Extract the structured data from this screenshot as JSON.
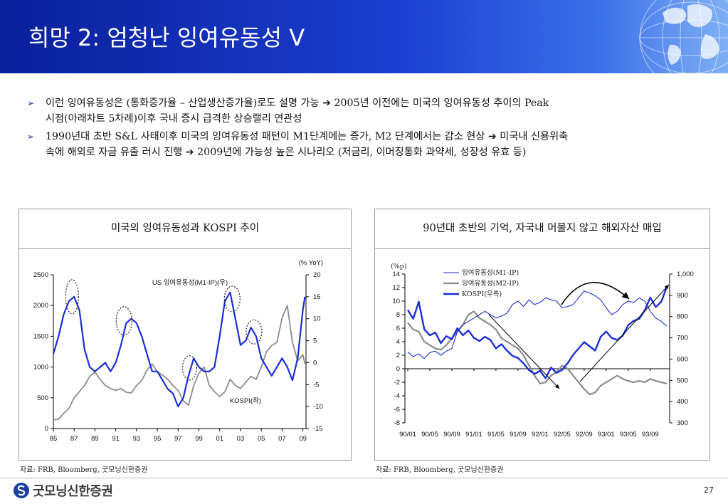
{
  "header": {
    "title": "희망 2: 엄청난 잉여유동성 V"
  },
  "bullets": [
    {
      "line1": "이런 잉여유동성은 (통화증가율 – 산업생산증가율)로도 설명 가능 ➔ 2005년 이전에는 미국의 잉여유동성 추이의 Peak",
      "line2": "시점(아래차트 5차례)이후 국내 증시 급격한 상승랠리 연관성"
    },
    {
      "line1": "1990년대 초반 S&L 사태이후 미국의 잉여유동성 패턴이 M1단계에는 증가, M2 단계에서는 감소 현상 ➔ 미국내 신용위축",
      "line2": "속에 해외로 자금 유출 러시 진행 ➔ 2009년에 가능성 높은 시나리오 (저금리, 이머징통화 과약세, 성장성 유효 등)"
    }
  ],
  "panels": {
    "left": {
      "title": "미국의 잉여유동성과 KOSPI 추이",
      "source": "자료: FRB, Bloomberg, 굿모닝신한증권"
    },
    "right": {
      "title": "90년대 초반의 기억, 자국내 머물지 않고 해외자산 매입",
      "source": "자료: FRB, Bloomberg, 굿모닝신한증권"
    }
  },
  "footer": {
    "logo": "굿모닝신한증권",
    "page": "27"
  },
  "colors": {
    "blue_series": "#1a2fd6",
    "gray_series": "#8c8c8c",
    "header_start": "#0a1f9a",
    "header_end": "#7fb0f5"
  },
  "chart_data": [
    {
      "type": "line",
      "title": "미국의 잉여유동성과 KOSPI 추이",
      "x_ticks": [
        "85",
        "87",
        "89",
        "91",
        "93",
        "95",
        "97",
        "99",
        "01",
        "03",
        "05",
        "07",
        "09"
      ],
      "y_left_ticks": [
        "0",
        "500",
        "1000",
        "1500",
        "2000",
        "2500"
      ],
      "y_right_ticks": [
        "-15",
        "-10",
        "-5",
        "0",
        "5",
        "10",
        "15",
        "20"
      ],
      "ylim_left": [
        0,
        2500
      ],
      "ylim_right": [
        -15,
        20
      ],
      "right_unit": "(% YoY)",
      "annotations": {
        "blue": "US 잉여유동성(M1-IP)(우)",
        "gray": "KOSPI(좌)"
      },
      "series": [
        {
          "name": "US 잉여유동성(M1-IP)(우)",
          "axis": "right",
          "x": [
            85,
            85.5,
            86,
            86.5,
            87,
            87.5,
            88,
            88.5,
            89,
            89.5,
            90,
            90.5,
            91,
            91.5,
            92,
            92.5,
            93,
            93.5,
            94,
            94.5,
            95,
            95.5,
            96,
            96.5,
            97,
            97.5,
            98,
            98.5,
            99,
            99.5,
            100,
            100.5,
            101,
            101.5,
            102,
            102.5,
            103,
            103.5,
            104,
            104.5,
            105,
            105.5,
            106,
            106.5,
            107,
            107.5,
            108,
            108.5,
            109,
            109.2
          ],
          "y": [
            2,
            6,
            11,
            14,
            15,
            12,
            3,
            -1,
            -2,
            -1,
            0,
            -2,
            0,
            4,
            9,
            10,
            9,
            6,
            2,
            -2,
            -2,
            -4,
            -6,
            -7,
            -10,
            -8,
            -3,
            1,
            -1,
            -2,
            -2,
            -1,
            6,
            14,
            16,
            10,
            4,
            5,
            8,
            6,
            1,
            -1,
            -3,
            -1,
            1,
            -1,
            -4,
            1,
            12,
            15
          ]
        },
        {
          "name": "KOSPI(좌)",
          "axis": "left",
          "x": [
            85,
            85.5,
            86,
            86.5,
            87,
            87.5,
            88,
            88.5,
            89,
            89.5,
            90,
            90.5,
            91,
            91.5,
            92,
            92.5,
            93,
            93.5,
            94,
            94.5,
            95,
            95.5,
            96,
            96.5,
            97,
            97.5,
            98,
            98.5,
            99,
            99.5,
            100,
            100.5,
            101,
            101.5,
            102,
            102.5,
            103,
            103.5,
            104,
            104.5,
            105,
            105.5,
            106,
            106.5,
            107,
            107.5,
            108,
            108.5,
            109,
            109.2
          ],
          "y": [
            140,
            150,
            250,
            330,
            500,
            600,
            700,
            850,
            920,
            800,
            700,
            650,
            620,
            650,
            590,
            580,
            700,
            780,
            950,
            1050,
            920,
            870,
            800,
            700,
            620,
            450,
            380,
            700,
            900,
            1000,
            700,
            600,
            520,
            600,
            800,
            700,
            650,
            750,
            850,
            800,
            1000,
            1250,
            1350,
            1400,
            1800,
            2000,
            1400,
            1100,
            1200,
            1050
          ]
        }
      ]
    },
    {
      "type": "line",
      "title": "90년대 초반의 기억, 자국내 머물지 않고 해외자산 매입",
      "x_ticks": [
        "90/01",
        "90/05",
        "90/09",
        "91/01",
        "91/05",
        "91/09",
        "92/01",
        "92/05",
        "92/09",
        "93/01",
        "93/05",
        "93/09"
      ],
      "y_left_ticks": [
        "-8",
        "-6",
        "-4",
        "-2",
        "0",
        "2",
        "4",
        "6",
        "8",
        "10",
        "12",
        "14"
      ],
      "y_right_ticks": [
        "300",
        "400",
        "500",
        "600",
        "700",
        "800",
        "900",
        "1,000"
      ],
      "ylim_left": [
        -8,
        14
      ],
      "ylim_right": [
        300,
        1000
      ],
      "left_unit": "(%p)",
      "series": [
        {
          "name": "잉여유동성(M1-IP)",
          "axis": "left",
          "x": [
            0,
            1,
            2,
            3,
            4,
            5,
            6,
            7,
            8,
            9,
            10,
            11,
            12,
            13,
            14,
            15,
            16,
            17,
            18,
            19,
            20,
            21,
            22,
            23,
            24,
            25,
            26,
            27,
            28,
            29,
            30,
            31,
            32,
            33,
            34,
            35,
            36,
            37,
            38,
            39,
            40,
            41,
            42,
            43,
            44,
            45,
            46,
            47
          ],
          "y": [
            2.5,
            1.8,
            2.2,
            1.5,
            2.4,
            2.6,
            2.0,
            2.6,
            3.0,
            5.5,
            6.5,
            7.0,
            7.5,
            8.0,
            8.5,
            8.0,
            7.5,
            7.8,
            8.2,
            9.5,
            10.0,
            9.2,
            10.2,
            9.5,
            9.8,
            10.5,
            10.2,
            10.0,
            9.0,
            9.2,
            9.5,
            10.5,
            11.5,
            11.2,
            10.8,
            10.2,
            9.0,
            8.0,
            8.5,
            9.5,
            10.0,
            9.8,
            10.5,
            10.0,
            8.5,
            7.5,
            7.0,
            6.3
          ]
        },
        {
          "name": "잉여유동성(M2-IP)",
          "axis": "left",
          "x": [
            0,
            1,
            2,
            3,
            4,
            5,
            6,
            7,
            8,
            9,
            10,
            11,
            12,
            13,
            14,
            15,
            16,
            17,
            18,
            19,
            20,
            21,
            22,
            23,
            24,
            25,
            26,
            27,
            28,
            29,
            30,
            31,
            32,
            33,
            34,
            35,
            36,
            37,
            38,
            39,
            40,
            41,
            42,
            43,
            44,
            45,
            46,
            47
          ],
          "y": [
            6.8,
            5.8,
            5.5,
            4.0,
            3.5,
            3.0,
            2.8,
            3.5,
            4.5,
            5.5,
            6.5,
            8.0,
            8.5,
            7.5,
            7.0,
            6.5,
            5.8,
            4.5,
            4.0,
            3.5,
            3.0,
            2.0,
            0.5,
            -1.0,
            -2.2,
            -2.0,
            -1.0,
            -0.5,
            0.5,
            0.0,
            -1.0,
            -2.0,
            -3.0,
            -3.8,
            -3.5,
            -2.5,
            -2.0,
            -1.5,
            -1.0,
            -1.5,
            -1.8,
            -2.0,
            -1.8,
            -2.0,
            -1.5,
            -1.8,
            -2.0,
            -2.2
          ]
        },
        {
          "name": "KOSPI(우측)",
          "axis": "right",
          "x": [
            0,
            1,
            2,
            3,
            4,
            5,
            6,
            7,
            8,
            9,
            10,
            11,
            12,
            13,
            14,
            15,
            16,
            17,
            18,
            19,
            20,
            21,
            22,
            23,
            24,
            25,
            26,
            27,
            28,
            29,
            30,
            31,
            32,
            33,
            34,
            35,
            36,
            37,
            38,
            39,
            40,
            41,
            42,
            43,
            44,
            45,
            46,
            47
          ],
          "y": [
            832,
            790,
            870,
            740,
            712,
            725,
            675,
            708,
            694,
            745,
            712,
            735,
            700,
            685,
            705,
            690,
            650,
            670,
            640,
            615,
            605,
            580,
            548,
            530,
            545,
            510,
            560,
            535,
            550,
            580,
            620,
            650,
            680,
            660,
            640,
            705,
            730,
            700,
            690,
            710,
            760,
            780,
            790,
            830,
            890,
            845,
            870,
            940
          ]
        }
      ]
    }
  ]
}
